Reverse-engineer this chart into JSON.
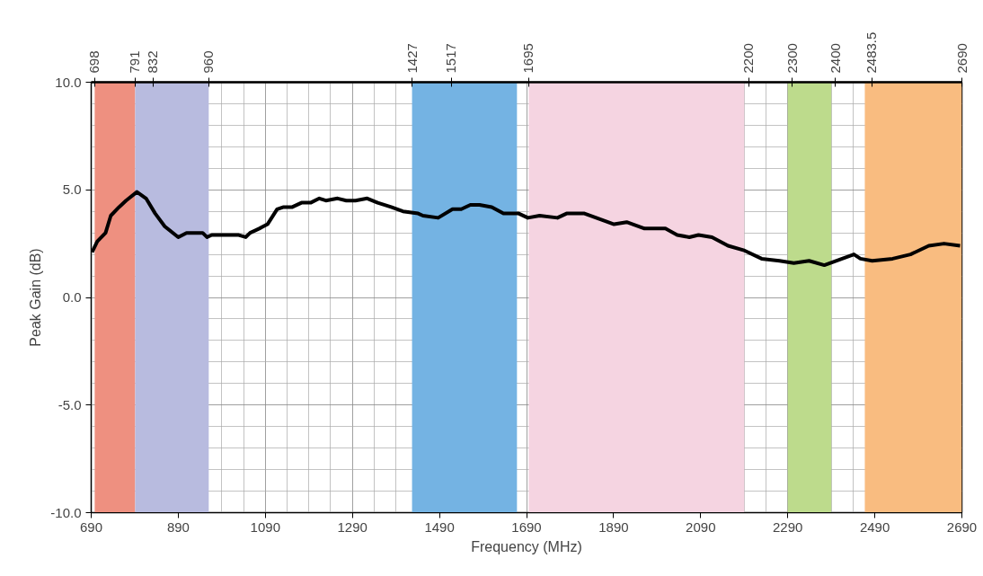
{
  "chart_data": {
    "type": "line",
    "xlabel": "Frequency (MHz)",
    "ylabel": "Peak Gain (dB)",
    "xlim": [
      690,
      2690
    ],
    "ylim": [
      -10,
      10
    ],
    "xticks": [
      690,
      890,
      1090,
      1290,
      1490,
      1690,
      1890,
      2090,
      2290,
      2490,
      2690
    ],
    "yticks": [
      {
        "value": -10,
        "label": "-10.0"
      },
      {
        "value": -5,
        "label": "-5.0"
      },
      {
        "value": 0,
        "label": "0.0"
      },
      {
        "value": 5,
        "label": "5.0"
      },
      {
        "value": 10,
        "label": "10.0"
      }
    ],
    "x2lim": [
      690,
      2690
    ],
    "x2ticks": [
      698,
      791,
      832,
      960,
      1427,
      1517,
      1695,
      2200,
      2300,
      2400,
      2483.5,
      2690
    ],
    "grid": true,
    "line_style": "solid",
    "marker": "none",
    "bands": [
      {
        "axis": "x",
        "from": 698,
        "to": 791,
        "color": "#ee9080"
      },
      {
        "axis": "x",
        "from": 791,
        "to": 960,
        "color": "#b8bbdf"
      },
      {
        "axis": "x",
        "from": 1427,
        "to": 1668,
        "color": "#74b3e3"
      },
      {
        "axis": "x",
        "from": 1695,
        "to": 2190,
        "color": "#f5d4e1"
      },
      {
        "axis": "x",
        "from": 2290,
        "to": 2390,
        "color": "#bddb8c"
      },
      {
        "axis": "x",
        "from": 2467,
        "to": 2690,
        "color": "#f9bc80"
      }
    ],
    "series": [
      {
        "color": "#000000",
        "x": [
          692,
          704,
          723,
          735,
          754,
          770,
          795,
          816,
          837,
          859,
          890,
          909,
          946,
          956,
          967,
          993,
          1029,
          1045,
          1055,
          1076,
          1095,
          1117,
          1132,
          1152,
          1173,
          1194,
          1214,
          1229,
          1256,
          1276,
          1297,
          1324,
          1348,
          1379,
          1406,
          1441,
          1452,
          1487,
          1520,
          1540,
          1561,
          1582,
          1610,
          1637,
          1672,
          1693,
          1720,
          1761,
          1782,
          1823,
          1850,
          1891,
          1920,
          1961,
          2009,
          2036,
          2064,
          2085,
          2116,
          2153,
          2188,
          2230,
          2271,
          2304,
          2339,
          2374,
          2415,
          2442,
          2457,
          2484,
          2531,
          2572,
          2614,
          2649,
          2686
        ],
        "values": [
          2.1,
          2.6,
          3.0,
          3.8,
          4.2,
          4.5,
          4.9,
          4.6,
          3.9,
          3.3,
          2.8,
          3.0,
          3.0,
          2.8,
          2.9,
          2.9,
          2.9,
          2.8,
          3.0,
          3.2,
          3.4,
          4.1,
          4.2,
          4.2,
          4.4,
          4.4,
          4.6,
          4.5,
          4.6,
          4.5,
          4.5,
          4.6,
          4.4,
          4.2,
          4.0,
          3.9,
          3.8,
          3.7,
          4.1,
          4.1,
          4.3,
          4.3,
          4.2,
          3.9,
          3.9,
          3.7,
          3.8,
          3.7,
          3.9,
          3.9,
          3.7,
          3.4,
          3.5,
          3.2,
          3.2,
          2.9,
          2.8,
          2.9,
          2.8,
          2.4,
          2.2,
          1.8,
          1.7,
          1.6,
          1.7,
          1.5,
          1.8,
          2.0,
          1.8,
          1.7,
          1.8,
          2.0,
          2.4,
          2.5,
          2.4
        ]
      }
    ]
  }
}
